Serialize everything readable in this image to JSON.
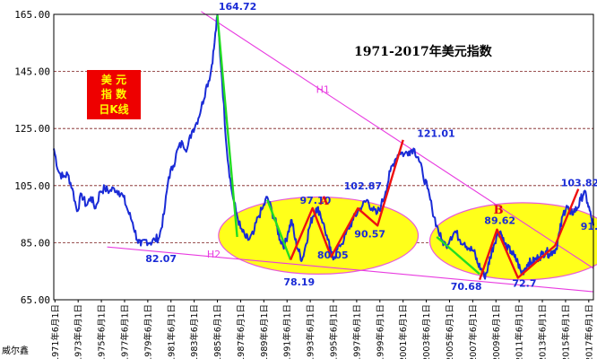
{
  "chart_data": {
    "type": "line",
    "title": "1971-2017年美元指数",
    "ylim": [
      65,
      165
    ],
    "yticks": [
      "165.00",
      "145.00",
      "125.00",
      "105.00",
      "85.00",
      "65.00"
    ],
    "ytick_values": [
      165,
      145,
      125,
      105,
      85,
      65
    ],
    "xlim": [
      1971.4,
      2017.9
    ],
    "xticks": [
      {
        "year": 1971.5,
        "label": "1971年6月1日"
      },
      {
        "year": 1973.5,
        "label": "1973年6月1日"
      },
      {
        "year": 1975.5,
        "label": "1975年6月1日"
      },
      {
        "year": 1977.5,
        "label": "1977年6月1日"
      },
      {
        "year": 1979.5,
        "label": "1979年6月1日"
      },
      {
        "year": 1981.5,
        "label": "1981年6月1日"
      },
      {
        "year": 1983.5,
        "label": "1983年6月1日"
      },
      {
        "year": 1985.5,
        "label": "1985年6月1日"
      },
      {
        "year": 1987.5,
        "label": "1987年6月1日"
      },
      {
        "year": 1989.5,
        "label": "1989年6月1日"
      },
      {
        "year": 1991.5,
        "label": "1991年6月1日"
      },
      {
        "year": 1993.5,
        "label": "1993年6月1日"
      },
      {
        "year": 1995.5,
        "label": "1995年6月1日"
      },
      {
        "year": 1997.5,
        "label": "1997年6月1日"
      },
      {
        "year": 1999.5,
        "label": "1999年6月1日"
      },
      {
        "year": 2001.5,
        "label": "2001年6月1日"
      },
      {
        "year": 2003.5,
        "label": "2003年6月1日"
      },
      {
        "year": 2005.5,
        "label": "2005年6月1日"
      },
      {
        "year": 2007.5,
        "label": "2007年6月1日"
      },
      {
        "year": 2009.5,
        "label": "2009年6月1日"
      },
      {
        "year": 2011.5,
        "label": "2011年6月1日"
      },
      {
        "year": 2013.5,
        "label": "2013年6月1日"
      },
      {
        "year": 2015.5,
        "label": "2015年6月1日"
      },
      {
        "year": 2017.5,
        "label": "2017年6月1日"
      }
    ],
    "gridlines_y": [
      165,
      145,
      125,
      105,
      85,
      65
    ],
    "series": [
      {
        "color": "#1a2bd6",
        "x": [
          1971.4,
          1971.8,
          1972.2,
          1972.6,
          1973.0,
          1973.4,
          1973.8,
          1974.2,
          1974.6,
          1975.0,
          1975.4,
          1975.8,
          1976.2,
          1976.6,
          1977.0,
          1977.4,
          1977.8,
          1978.2,
          1978.6,
          1978.9,
          1979.3,
          1979.7,
          1980.1,
          1980.5,
          1980.9,
          1981.3,
          1981.7,
          1982.1,
          1982.5,
          1982.9,
          1983.3,
          1983.7,
          1984.1,
          1984.5,
          1984.9,
          1985.2,
          1985.5,
          1985.9,
          1986.3,
          1986.7,
          1987.1,
          1987.5,
          1987.9,
          1988.2,
          1988.6,
          1989.0,
          1989.4,
          1989.8,
          1990.2,
          1990.6,
          1990.9,
          1991.3,
          1991.6,
          1991.9,
          1992.2,
          1992.5,
          1992.8,
          1993.1,
          1993.4,
          1993.7,
          1994.0,
          1994.3,
          1994.6,
          1995.0,
          1995.3,
          1995.6,
          1996.0,
          1996.4,
          1996.8,
          1997.2,
          1997.6,
          1998.0,
          1998.4,
          1998.8,
          1999.2,
          1999.6,
          2000.0,
          2000.4,
          2000.8,
          2001.2,
          2001.6,
          2002.0,
          2002.4,
          2002.8,
          2003.2,
          2003.6,
          2004.0,
          2004.4,
          2004.8,
          2005.2,
          2005.6,
          2006.0,
          2006.4,
          2006.8,
          2007.2,
          2007.6,
          2007.9,
          2008.2,
          2008.5,
          2008.8,
          2009.0,
          2009.3,
          2009.6,
          2009.9,
          2010.2,
          2010.5,
          2010.8,
          2011.1,
          2011.4,
          2011.7,
          2012.0,
          2012.3,
          2012.6,
          2012.9,
          2013.2,
          2013.5,
          2013.8,
          2014.1,
          2014.4,
          2014.7,
          2015.0,
          2015.3,
          2015.6,
          2015.9,
          2016.2,
          2016.5,
          2016.8,
          2017.1,
          2017.4,
          2017.7,
          2017.9
        ],
        "values": [
          118,
          110,
          108,
          109,
          104,
          96,
          102,
          98,
          101,
          97,
          103,
          104,
          103,
          104,
          103,
          101,
          96,
          92,
          86,
          84,
          86,
          85,
          86,
          87,
          95,
          108,
          112,
          118,
          120,
          118,
          124,
          127,
          132,
          139,
          144,
          153,
          164.72,
          142,
          118,
          104,
          96,
          90,
          87,
          86,
          88,
          94,
          97,
          101,
          96,
          91,
          86,
          84,
          89,
          93,
          86,
          82,
          79,
          84,
          90,
          94,
          97,
          96,
          92,
          86,
          81,
          80,
          84,
          86,
          90,
          93,
          96,
          98,
          100,
          97,
          95,
          98,
          103,
          110,
          114,
          117,
          116,
          117,
          118,
          115,
          109,
          104,
          97,
          91,
          86,
          84,
          87,
          89,
          86,
          85,
          83,
          82,
          78,
          76,
          73,
          76,
          80,
          84,
          88,
          89,
          85,
          83,
          82,
          80,
          78,
          74,
          76,
          78,
          78,
          79,
          80,
          81,
          82,
          81,
          82,
          83,
          89,
          95,
          98,
          95,
          96,
          97,
          100,
          103,
          99,
          94,
          91
        ]
      }
    ],
    "trend_segments": [
      {
        "color": "#22dd22",
        "points": [
          [
            1985.5,
            164.72
          ],
          [
            1987.2,
            87
          ]
        ]
      },
      {
        "color": "#22dd22",
        "points": [
          [
            1989.8,
            100
          ],
          [
            1991.8,
            79
          ]
        ]
      },
      {
        "color": "#22dd22",
        "points": [
          [
            2004.4,
            87
          ],
          [
            2008.1,
            74
          ]
        ]
      },
      {
        "color": "#ee1111",
        "points": [
          [
            1991.8,
            79
          ],
          [
            1993.7,
            97.1
          ],
          [
            1995.3,
            80.05
          ],
          [
            1997.6,
            97
          ],
          [
            1999.3,
            91
          ],
          [
            2001.5,
            121.01
          ]
        ]
      },
      {
        "color": "#ee1111",
        "points": [
          [
            2008.1,
            72
          ],
          [
            2009.6,
            89.62
          ],
          [
            2011.4,
            72.7
          ],
          [
            2014.6,
            84
          ],
          [
            2016.6,
            103.82
          ]
        ]
      }
    ],
    "trendlines": [
      {
        "name": "H1",
        "color": "#e83ce0",
        "from": [
          1984.1,
          166
        ],
        "to": [
          2017.9,
          76
        ]
      },
      {
        "name": "H2",
        "color": "#e83ce0",
        "from": [
          1976.0,
          83.5
        ],
        "to": [
          2017.9,
          67.8
        ]
      }
    ],
    "ellipses": [
      {
        "cx": 1994.2,
        "cy": 87.5,
        "rx": 8.6,
        "ry": 13.5
      },
      {
        "cx": 2011.8,
        "cy": 85.5,
        "rx": 8.0,
        "ry": 13.5
      }
    ],
    "annotations": [
      {
        "text": "164.72",
        "x": 1985.6,
        "y": 166.5,
        "style": "blue"
      },
      {
        "text": "82.07",
        "x": 1979.3,
        "y": 78.2,
        "style": "blue"
      },
      {
        "text": "97.10",
        "x": 1992.6,
        "y": 98.7,
        "style": "blue"
      },
      {
        "text": "A",
        "x": 1994.3,
        "y": 98.4,
        "style": "red"
      },
      {
        "text": "102.87",
        "x": 1996.4,
        "y": 103.7,
        "style": "blue"
      },
      {
        "text": "90.57",
        "x": 1997.3,
        "y": 86.8,
        "style": "blue"
      },
      {
        "text": "80.05",
        "x": 1994.1,
        "y": 79.5,
        "style": "blue"
      },
      {
        "text": "78.19",
        "x": 1991.2,
        "y": 70.0,
        "style": "blue"
      },
      {
        "text": "121.01",
        "x": 2002.7,
        "y": 122.0,
        "style": "blue"
      },
      {
        "text": "89.62",
        "x": 2008.5,
        "y": 91.5,
        "style": "blue"
      },
      {
        "text": "B",
        "x": 2009.3,
        "y": 95.2,
        "style": "red"
      },
      {
        "text": "70.68",
        "x": 2005.6,
        "y": 68.5,
        "style": "blue"
      },
      {
        "text": "72.7",
        "x": 2010.9,
        "y": 69.6,
        "style": "blue"
      },
      {
        "text": "103.82",
        "x": 2015.1,
        "y": 104.8,
        "style": "blue"
      },
      {
        "text": "91.",
        "x": 2016.8,
        "y": 89.5,
        "style": "blue"
      },
      {
        "text": "H1",
        "x": 1994.0,
        "y": 137.5,
        "style": "pink"
      },
      {
        "text": "H2",
        "x": 1984.6,
        "y": 79.8,
        "style": "pink"
      }
    ],
    "legend_box": {
      "lines": [
        "美 元",
        "指 数",
        "日K线"
      ]
    }
  },
  "footer": "威尔鑫"
}
